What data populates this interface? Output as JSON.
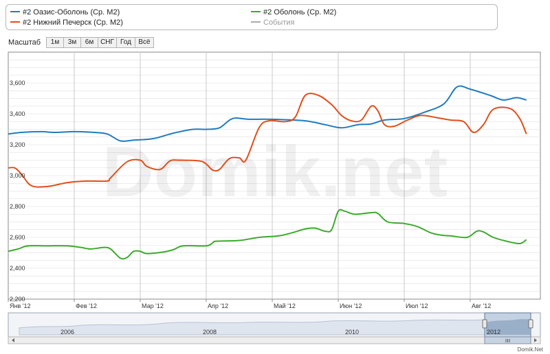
{
  "legend": {
    "items": [
      {
        "label": "#2 Оазис-Оболонь (Ср. М2)",
        "color": "#1f7bbf"
      },
      {
        "label": "#2 Нижний Печерск (Ср. М2)",
        "color": "#e04e1a"
      },
      {
        "label": "#2 Оболонь (Ср. М2)",
        "color": "#3aaa2a"
      },
      {
        "label": "События",
        "color": "#aaaaaa"
      }
    ]
  },
  "zoom": {
    "label": "Масштаб",
    "buttons": [
      "1м",
      "3м",
      "6м",
      "СНГ",
      "Год",
      "Всё"
    ]
  },
  "watermark": "Domik.net",
  "credit": "Domik.Net",
  "navigator": {
    "years": [
      "2006",
      "2008",
      "2010",
      "2012"
    ]
  },
  "colors": {
    "grid": "#d9d9d9",
    "month_grid": "#c9c9c9",
    "frame": "#888888"
  },
  "chart_data": {
    "type": "line",
    "x_labels": [
      "Янв '12",
      "Фев '12",
      "Мар '12",
      "Апр '12",
      "Май '12",
      "Июн '12",
      "Июл '12",
      "Авг '12"
    ],
    "xlim": [
      0,
      7.85
    ],
    "ylim": [
      2200,
      3800
    ],
    "y_ticks": [
      2200,
      2400,
      2600,
      2800,
      3000,
      3200,
      3400,
      3600
    ],
    "y_tick_labels": [
      "2,200",
      "2,400",
      "2,600",
      "2,800",
      "3,000",
      "3,200",
      "3,400",
      "3,600"
    ],
    "grid": true,
    "legend_position": "top",
    "series": [
      {
        "name": "#2 Оазис-Оболонь (Ср. М2)",
        "color": "#1f7bbf",
        "points": [
          [
            0,
            3270
          ],
          [
            0.2,
            3280
          ],
          [
            0.5,
            3285
          ],
          [
            0.7,
            3280
          ],
          [
            1.0,
            3285
          ],
          [
            1.3,
            3280
          ],
          [
            1.5,
            3270
          ],
          [
            1.7,
            3225
          ],
          [
            1.9,
            3230
          ],
          [
            2.2,
            3240
          ],
          [
            2.5,
            3275
          ],
          [
            2.8,
            3300
          ],
          [
            3.0,
            3300
          ],
          [
            3.2,
            3310
          ],
          [
            3.4,
            3370
          ],
          [
            3.65,
            3365
          ],
          [
            4.0,
            3365
          ],
          [
            4.5,
            3355
          ],
          [
            4.8,
            3330
          ],
          [
            5.05,
            3310
          ],
          [
            5.3,
            3330
          ],
          [
            5.5,
            3335
          ],
          [
            5.7,
            3360
          ],
          [
            6.0,
            3370
          ],
          [
            6.3,
            3410
          ],
          [
            6.6,
            3465
          ],
          [
            6.8,
            3575
          ],
          [
            7.0,
            3560
          ],
          [
            7.3,
            3520
          ],
          [
            7.5,
            3490
          ],
          [
            7.7,
            3505
          ],
          [
            7.85,
            3490
          ]
        ]
      },
      {
        "name": "#2 Нижний Печерск (Ср. М2)",
        "color": "#e04e1a",
        "points": [
          [
            0,
            3050
          ],
          [
            0.1,
            3050
          ],
          [
            0.2,
            3010
          ],
          [
            0.35,
            2935
          ],
          [
            0.6,
            2930
          ],
          [
            0.9,
            2955
          ],
          [
            1.2,
            2965
          ],
          [
            1.5,
            2965
          ],
          [
            1.55,
            2985
          ],
          [
            1.8,
            3090
          ],
          [
            2.0,
            3100
          ],
          [
            2.1,
            3060
          ],
          [
            2.3,
            3040
          ],
          [
            2.45,
            3095
          ],
          [
            2.6,
            3100
          ],
          [
            2.9,
            3095
          ],
          [
            3.0,
            3075
          ],
          [
            3.1,
            3035
          ],
          [
            3.2,
            3040
          ],
          [
            3.35,
            3110
          ],
          [
            3.5,
            3115
          ],
          [
            3.6,
            3100
          ],
          [
            3.8,
            3310
          ],
          [
            3.95,
            3355
          ],
          [
            4.2,
            3350
          ],
          [
            4.35,
            3380
          ],
          [
            4.5,
            3520
          ],
          [
            4.7,
            3520
          ],
          [
            4.9,
            3460
          ],
          [
            5.05,
            3390
          ],
          [
            5.2,
            3355
          ],
          [
            5.35,
            3360
          ],
          [
            5.5,
            3450
          ],
          [
            5.6,
            3420
          ],
          [
            5.7,
            3330
          ],
          [
            5.85,
            3320
          ],
          [
            6.05,
            3360
          ],
          [
            6.25,
            3390
          ],
          [
            6.5,
            3375
          ],
          [
            6.7,
            3360
          ],
          [
            6.9,
            3350
          ],
          [
            7.05,
            3280
          ],
          [
            7.2,
            3330
          ],
          [
            7.35,
            3430
          ],
          [
            7.6,
            3435
          ],
          [
            7.75,
            3370
          ],
          [
            7.85,
            3270
          ]
        ]
      },
      {
        "name": "#2 Оболонь (Ср. М2)",
        "color": "#3aaa2a",
        "points": [
          [
            0,
            2510
          ],
          [
            0.15,
            2525
          ],
          [
            0.3,
            2545
          ],
          [
            0.6,
            2545
          ],
          [
            0.9,
            2545
          ],
          [
            1.1,
            2535
          ],
          [
            1.25,
            2525
          ],
          [
            1.45,
            2535
          ],
          [
            1.55,
            2525
          ],
          [
            1.7,
            2465
          ],
          [
            1.8,
            2470
          ],
          [
            1.9,
            2510
          ],
          [
            2.0,
            2510
          ],
          [
            2.1,
            2495
          ],
          [
            2.35,
            2505
          ],
          [
            2.5,
            2520
          ],
          [
            2.65,
            2545
          ],
          [
            3.0,
            2545
          ],
          [
            3.1,
            2565
          ],
          [
            3.15,
            2575
          ],
          [
            3.5,
            2580
          ],
          [
            3.8,
            2600
          ],
          [
            4.1,
            2610
          ],
          [
            4.3,
            2630
          ],
          [
            4.5,
            2655
          ],
          [
            4.65,
            2660
          ],
          [
            4.8,
            2640
          ],
          [
            4.9,
            2650
          ],
          [
            5.0,
            2770
          ],
          [
            5.1,
            2770
          ],
          [
            5.25,
            2750
          ],
          [
            5.5,
            2760
          ],
          [
            5.6,
            2755
          ],
          [
            5.75,
            2700
          ],
          [
            6.0,
            2690
          ],
          [
            6.2,
            2670
          ],
          [
            6.4,
            2630
          ],
          [
            6.55,
            2615
          ],
          [
            6.7,
            2610
          ],
          [
            6.95,
            2600
          ],
          [
            7.1,
            2640
          ],
          [
            7.2,
            2635
          ],
          [
            7.35,
            2600
          ],
          [
            7.55,
            2575
          ],
          [
            7.75,
            2560
          ],
          [
            7.85,
            2585
          ]
        ]
      }
    ]
  }
}
